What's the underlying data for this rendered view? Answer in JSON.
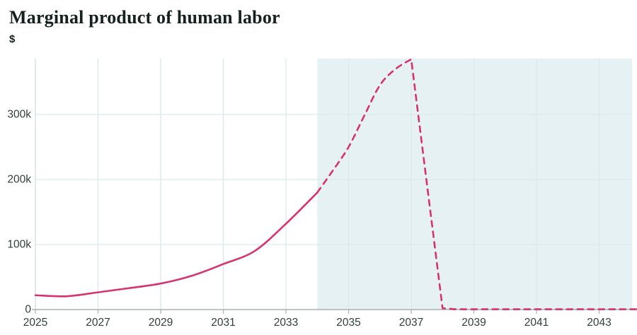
{
  "header": {
    "title": "Marginal product of human labor",
    "unit_label": "$"
  },
  "chart_data": {
    "type": "line",
    "title": "Marginal product of human labor",
    "ylabel": "$",
    "xlabel": "",
    "grid": true,
    "legend": "none",
    "xlim": [
      2025,
      2044.2
    ],
    "ylim": [
      0,
      386000
    ],
    "x_ticks": [
      2025,
      2027,
      2029,
      2031,
      2033,
      2035,
      2037,
      2039,
      2041,
      2043
    ],
    "x_gridlines": [
      2027,
      2029,
      2031,
      2033,
      2035,
      2037,
      2039,
      2041,
      2043
    ],
    "y_ticks": [
      {
        "value": 0,
        "label": "0"
      },
      {
        "value": 100000,
        "label": "100k"
      },
      {
        "value": 200000,
        "label": "200k"
      },
      {
        "value": 300000,
        "label": "300k"
      }
    ],
    "shaded_region": {
      "x_start": 2034,
      "x_end": 2044.05
    },
    "series": [
      {
        "name": "marginal-product-historical",
        "style": "solid",
        "smooth_first_n": 99,
        "points": [
          [
            2025,
            22000
          ],
          [
            2026,
            20500
          ],
          [
            2027,
            26500
          ],
          [
            2028,
            33000
          ],
          [
            2029,
            40000
          ],
          [
            2030,
            52000
          ],
          [
            2031,
            70000
          ],
          [
            2032,
            90000
          ],
          [
            2033,
            132000
          ],
          [
            2034,
            180000
          ]
        ]
      },
      {
        "name": "marginal-product-projection",
        "style": "dashed",
        "smooth_first_n": 7,
        "points": [
          [
            2034,
            180000
          ],
          [
            2034.5,
            214000
          ],
          [
            2035,
            250000
          ],
          [
            2035.5,
            298000
          ],
          [
            2036,
            345000
          ],
          [
            2036.5,
            370000
          ],
          [
            2037,
            385000
          ],
          [
            2038,
            2000
          ],
          [
            2038.4,
            500
          ],
          [
            2044.2,
            500
          ]
        ]
      }
    ],
    "colors": {
      "line": "#d6336f",
      "shade": "#e6f1f3",
      "grid": "#dce9ea",
      "x_axis": "#a8b1b1",
      "y_axis": "#d2dcdc",
      "tick_text": "#31403d",
      "title_text": "#15211e"
    }
  }
}
